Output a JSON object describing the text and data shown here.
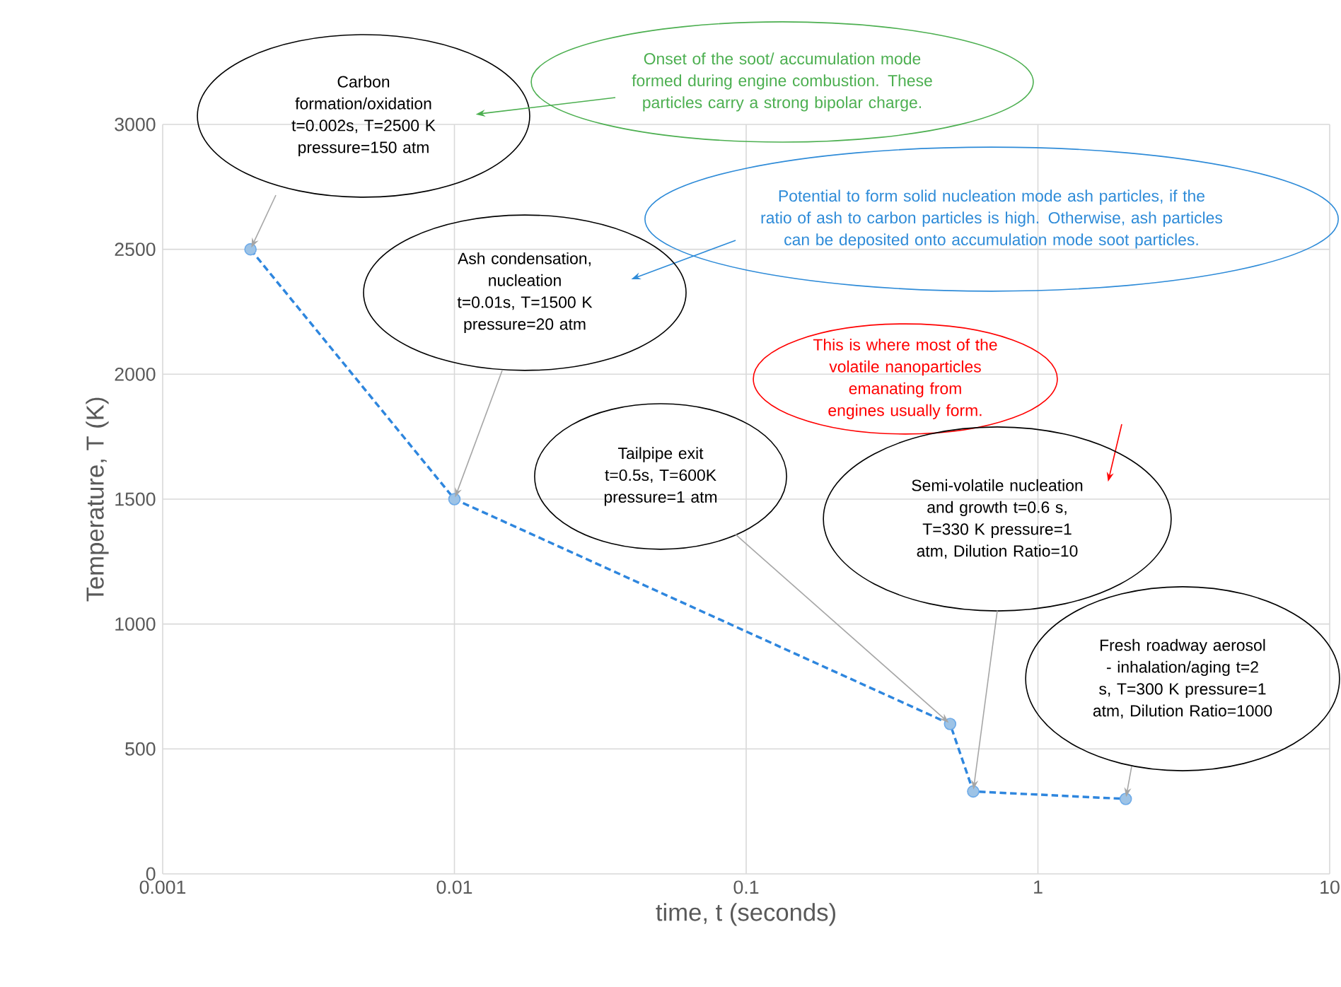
{
  "chart_data": {
    "type": "line",
    "xlabel": "time, t (seconds)",
    "ylabel": "Temperature, T (K)",
    "x": [
      0.002,
      0.01,
      0.5,
      0.6,
      2
    ],
    "series": [
      {
        "color": "#2e86de",
        "values": [
          2500,
          1500,
          600,
          330,
          300
        ]
      }
    ],
    "log": "x",
    "xlim": [
      0.001,
      10
    ],
    "xticks": [
      0.001,
      0.01,
      0.1,
      1,
      10
    ],
    "ylim": [
      0,
      3000
    ],
    "yticks": [
      0,
      500,
      1000,
      1500,
      2000,
      2500,
      3000
    ],
    "grid": true,
    "marker": "circle",
    "line_style": "dashed",
    "annotations": [
      "Carbon formation/oxidation t=0.002s, T=2500 K pressure=150 atm",
      "Onset of the soot/ accumulation mode formed during engine combustion. These particles carry a strong bipolar charge.",
      "Potential to form solid nucleation mode ash particles, if the ratio of ash to carbon particles is high. Otherwise, ash particles can be deposited onto accumulation mode soot particles.",
      "Ash condensation, nucleation t=0.01s, T=1500 K pressure=20 atm",
      "This is where most of the volatile nanoparticles emanating from engines usually form.",
      "Tailpipe exit t=0.5s, T=600K pressure=1 atm",
      "Semi-volatile nucleation and growth t=0.6 s, T=330 K pressure=1 atm, Dilution Ratio=10",
      "Fresh roadway aerosol - inhalation/aging t=2 s, T=300 K pressure=1 atm, Dilution Ratio=1000"
    ]
  }
}
